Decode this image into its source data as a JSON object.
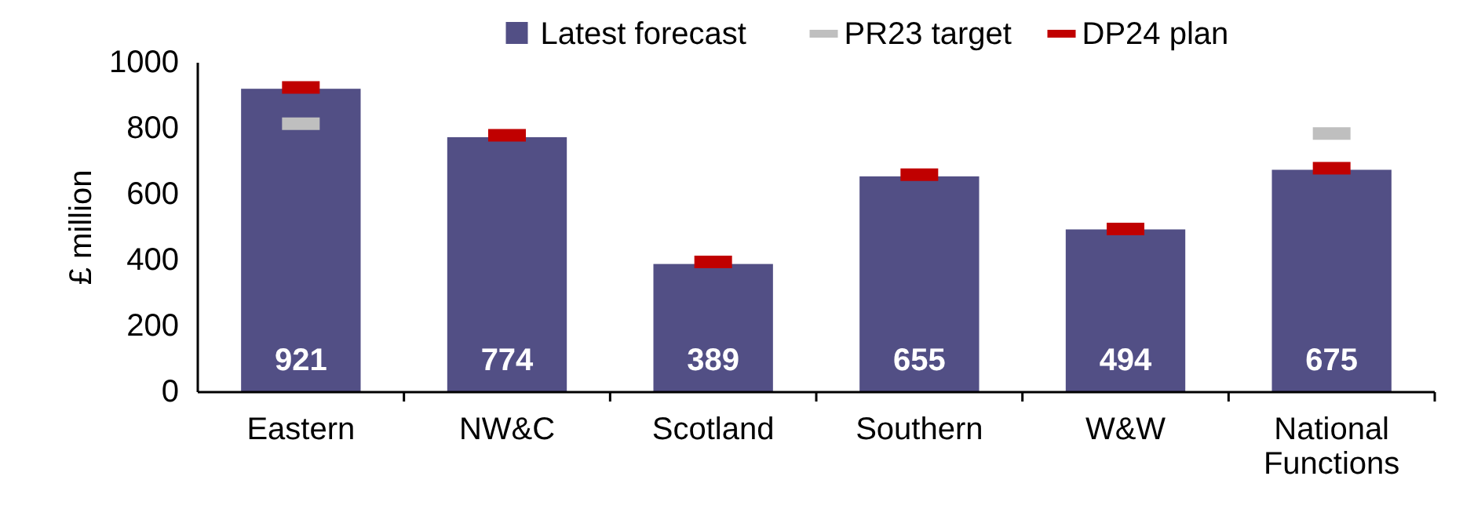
{
  "chart_data": {
    "type": "bar",
    "ylabel": "£ million",
    "categories": [
      "Eastern",
      "NW&C",
      "Scotland",
      "Southern",
      "W&W",
      "National Functions"
    ],
    "series": [
      {
        "name": "Latest forecast",
        "color": "#524f85",
        "values": [
          921,
          774,
          389,
          655,
          494,
          675
        ],
        "value_labels": [
          "921",
          "774",
          "389",
          "655",
          "494",
          "675"
        ]
      },
      {
        "name": "PR23 target",
        "type": "scatter",
        "color": "#bfbfbf",
        "values": [
          815,
          null,
          null,
          null,
          null,
          785
        ]
      },
      {
        "name": "DP24 plan",
        "type": "scatter",
        "color": "#c00000",
        "values": [
          925,
          780,
          395,
          660,
          495,
          680
        ]
      }
    ],
    "ylim": [
      0,
      1000
    ],
    "yticks": [
      0,
      200,
      400,
      600,
      800,
      1000
    ],
    "legend": "top",
    "grid": false
  }
}
